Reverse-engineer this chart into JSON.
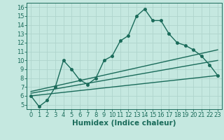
{
  "xlabel": "Humidex (Indice chaleur)",
  "background_color": "#c5e8e0",
  "grid_color": "#afd4cc",
  "line_color": "#1a6b5a",
  "xlim": [
    -0.5,
    23.5
  ],
  "ylim": [
    4.5,
    16.5
  ],
  "xticks": [
    0,
    1,
    2,
    3,
    4,
    5,
    6,
    7,
    8,
    9,
    10,
    11,
    12,
    13,
    14,
    15,
    16,
    17,
    18,
    19,
    20,
    21,
    22,
    23
  ],
  "yticks": [
    5,
    6,
    7,
    8,
    9,
    10,
    11,
    12,
    13,
    14,
    15,
    16
  ],
  "main_x": [
    0,
    1,
    2,
    3,
    4,
    5,
    6,
    7,
    8,
    9,
    10,
    11,
    12,
    13,
    14,
    15,
    16,
    17,
    18,
    19,
    20,
    21,
    22,
    23
  ],
  "main_y": [
    6.0,
    4.8,
    5.5,
    7.0,
    10.0,
    9.0,
    7.8,
    7.3,
    8.0,
    10.0,
    10.5,
    12.2,
    12.8,
    15.0,
    15.8,
    14.5,
    14.5,
    13.0,
    12.0,
    11.7,
    11.2,
    10.5,
    9.5,
    8.3
  ],
  "line2_x": [
    0,
    23
  ],
  "line2_y": [
    6.0,
    8.3
  ],
  "line3_x": [
    0,
    23
  ],
  "line3_y": [
    6.3,
    10.0
  ],
  "line4_x": [
    0,
    23
  ],
  "line4_y": [
    6.5,
    11.2
  ],
  "line_width": 1.0,
  "marker_size": 2.5,
  "tick_font_size": 6,
  "label_font_size": 7.5
}
